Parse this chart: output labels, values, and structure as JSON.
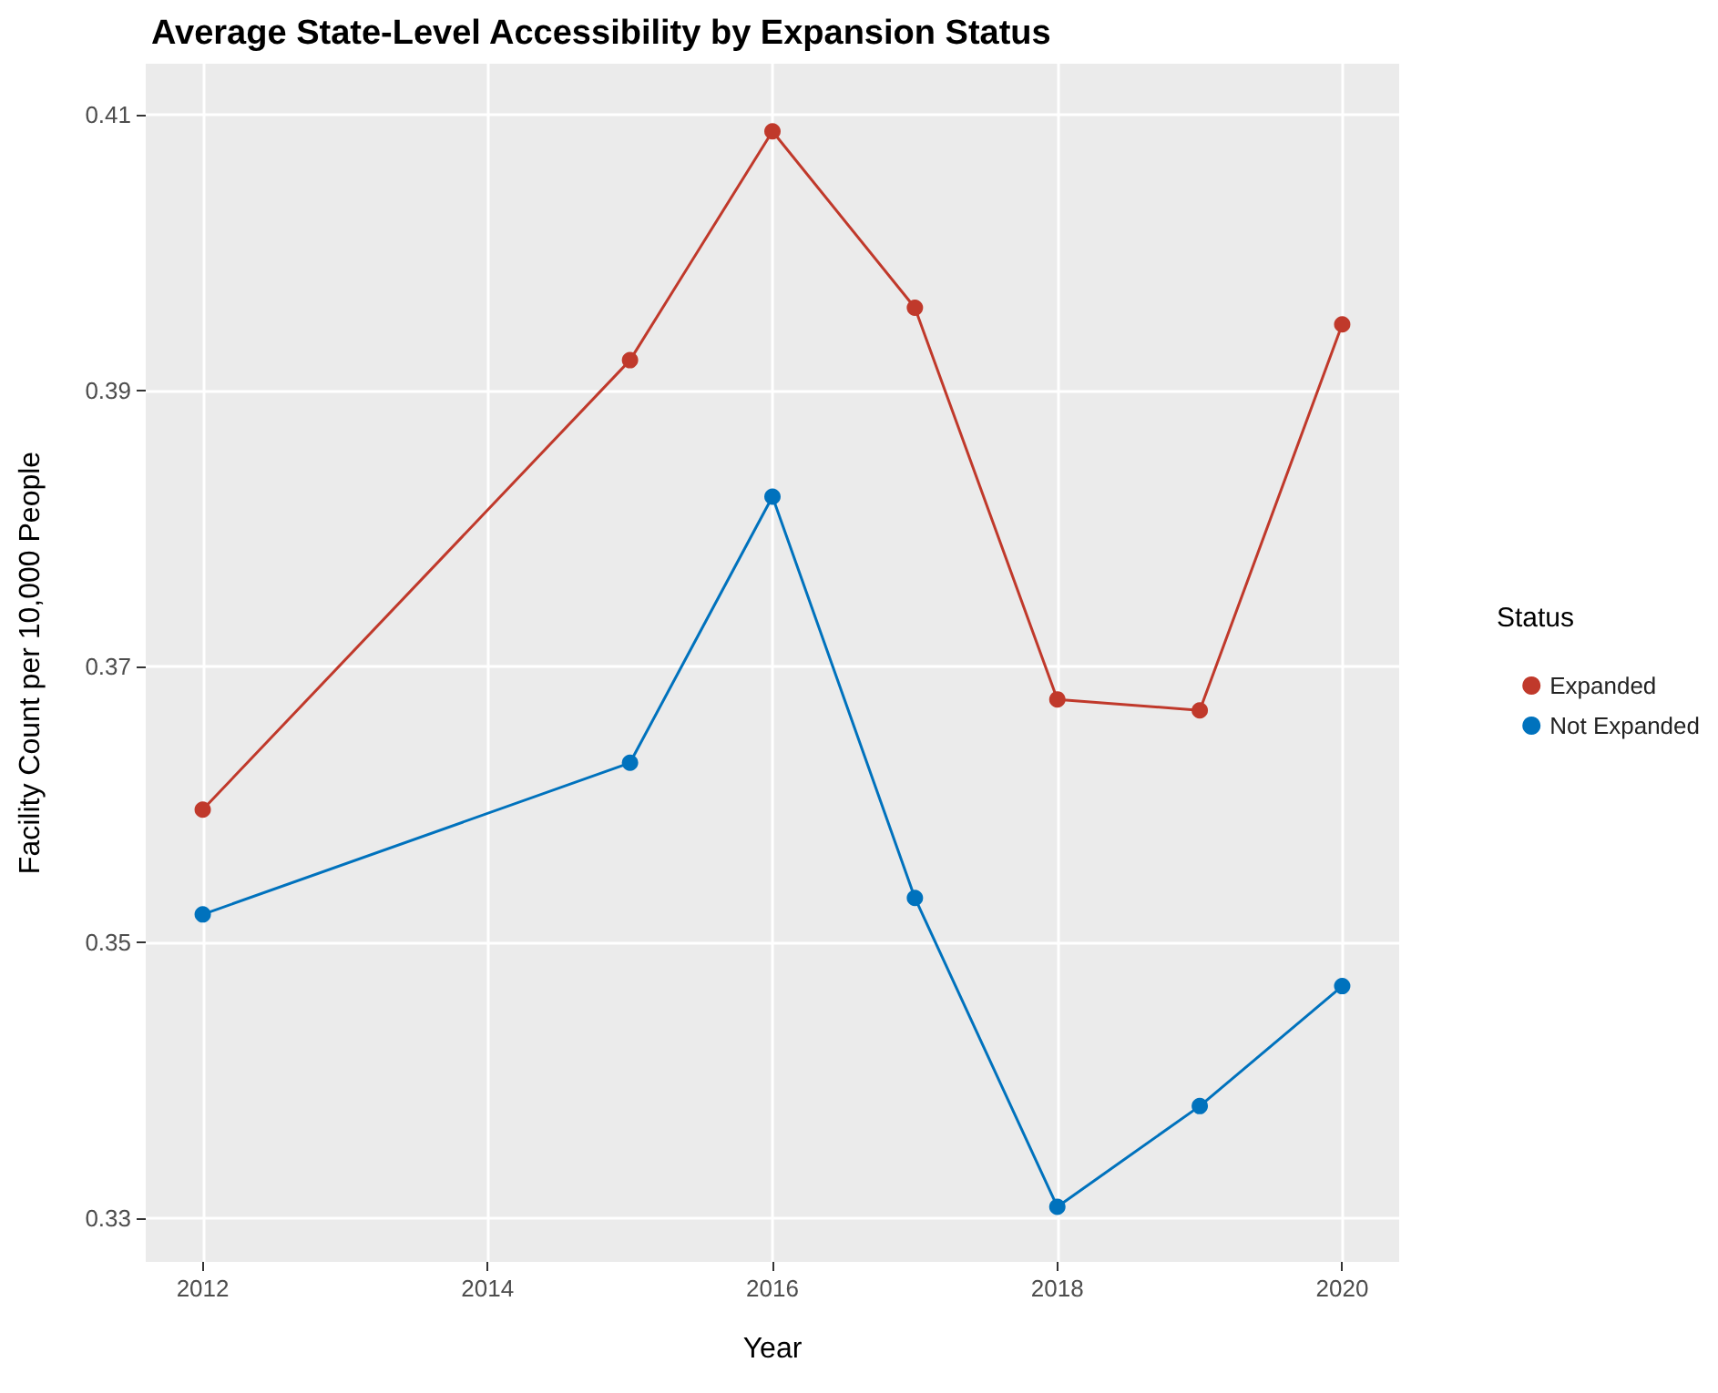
{
  "chart_data": {
    "type": "line",
    "title": "Average State-Level Accessibility by Expansion Status",
    "xlabel": "Year",
    "ylabel": "Facility Count per 10,000 People",
    "legend_title": "Status",
    "x": [
      2012,
      2015,
      2016,
      2017,
      2018,
      2019,
      2020
    ],
    "series": [
      {
        "name": "Expanded",
        "color": "#c0392b",
        "values": [
          0.3596,
          0.3922,
          0.4088,
          0.396,
          0.3676,
          0.3668,
          0.3948
        ]
      },
      {
        "name": "Not Expanded",
        "color": "#0072bd",
        "values": [
          0.352,
          0.363,
          0.3823,
          0.3532,
          0.3308,
          0.3381,
          0.3468
        ]
      }
    ],
    "xlim": [
      2011.6,
      2020.4
    ],
    "xticks": [
      2012,
      2014,
      2016,
      2018,
      2020
    ],
    "ylim": [
      0.3268,
      0.4137
    ],
    "yticks": [
      0.33,
      0.35,
      0.37,
      0.39,
      0.41
    ],
    "grid": true,
    "legend": "right",
    "marker": "circle",
    "line_style": "solid"
  }
}
